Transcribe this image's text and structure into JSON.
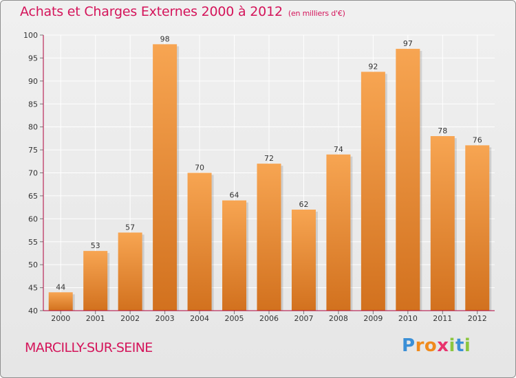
{
  "header": {
    "title": "Achats et Charges Externes 2000 à 2012",
    "subtitle": "(en milliers d'€)"
  },
  "footer": {
    "commune": "MARCILLY-SUR-SEINE",
    "logo_letters": [
      {
        "ch": "P",
        "color": "#3a8fd6"
      },
      {
        "ch": "r",
        "color": "#f08a1c"
      },
      {
        "ch": "o",
        "color": "#f08a1c"
      },
      {
        "ch": "x",
        "color": "#e8336d"
      },
      {
        "ch": "i",
        "color": "#8cc63f"
      },
      {
        "ch": "t",
        "color": "#3a8fd6"
      },
      {
        "ch": "i",
        "color": "#8cc63f"
      }
    ]
  },
  "colors": {
    "bar_top": "#f7a552",
    "bar_bottom": "#d2711e",
    "text_accent": "#d4145a",
    "grid": "#ffffff",
    "axis": "#b0003a"
  },
  "chart_data": {
    "type": "bar",
    "categories": [
      "2000",
      "2001",
      "2002",
      "2003",
      "2004",
      "2005",
      "2006",
      "2007",
      "2008",
      "2009",
      "2010",
      "2011",
      "2012"
    ],
    "values": [
      44,
      53,
      57,
      98,
      70,
      64,
      72,
      62,
      74,
      92,
      97,
      78,
      76
    ],
    "ylim": [
      40,
      100
    ],
    "yticks": [
      40,
      45,
      50,
      55,
      60,
      65,
      70,
      75,
      80,
      85,
      90,
      95,
      100
    ],
    "grid": true,
    "data_labels": true
  }
}
